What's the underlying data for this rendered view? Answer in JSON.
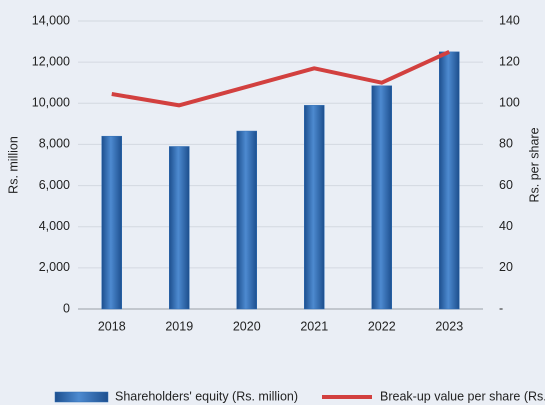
{
  "chart_data": {
    "type": "bar",
    "categories": [
      "2018",
      "2019",
      "2020",
      "2021",
      "2022",
      "2023"
    ],
    "series": [
      {
        "name": "Shareholders' equity (Rs. million)",
        "type": "bar",
        "color": "#2e6cb4",
        "values": [
          8400,
          7900,
          8650,
          9900,
          10850,
          12500
        ]
      },
      {
        "name": "Break-up value per share (Rs.)",
        "type": "line",
        "axis": "y2",
        "color": "#d2403f",
        "values": [
          104.5,
          99,
          108,
          117,
          110,
          125
        ]
      }
    ],
    "ylabel": "Rs. million",
    "y2label": "Rs. per share",
    "ylim": [
      0,
      14000
    ],
    "yticks": [
      0,
      {
        "value": 2000,
        "label": "2,000"
      },
      {
        "value": 4000,
        "label": "4,000"
      },
      {
        "value": 6000,
        "label": "6,000"
      },
      {
        "value": 8000,
        "label": "8,000"
      },
      {
        "value": 10000,
        "label": "10,000"
      },
      {
        "value": 12000,
        "label": "12,000"
      },
      {
        "value": 14000,
        "label": "14,000"
      }
    ],
    "y2lim": [
      0,
      140
    ],
    "y2ticks": [
      {
        "value": 0,
        "label": "-"
      },
      20,
      40,
      60,
      80,
      100,
      120,
      140
    ],
    "grid": true,
    "legend": "bottom"
  }
}
